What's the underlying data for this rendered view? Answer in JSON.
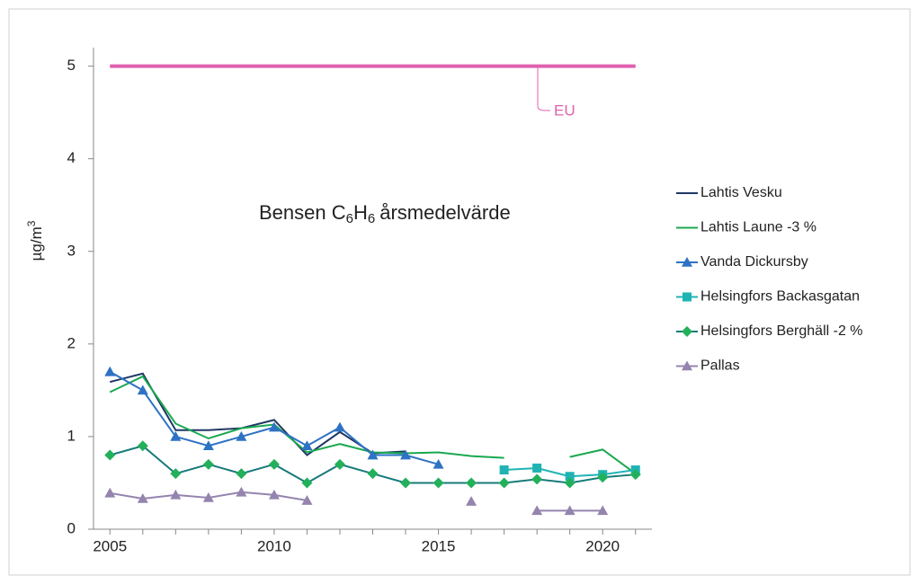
{
  "chart_data": {
    "type": "line",
    "title_parts": [
      "Bensen C",
      "6",
      "H",
      "6",
      "årsmedelvärde"
    ],
    "ylabel_parts": [
      "µg/m",
      "3"
    ],
    "x": [
      2005,
      2006,
      2007,
      2008,
      2009,
      2010,
      2011,
      2012,
      2013,
      2014,
      2015,
      2016,
      2017,
      2018,
      2019,
      2020,
      2021
    ],
    "xlim": [
      2004.5,
      2021.5
    ],
    "xticks": [
      2005,
      2010,
      2015,
      2020
    ],
    "ylim": [
      0,
      5.2
    ],
    "yticks": [
      0,
      1,
      2,
      3,
      4,
      5
    ],
    "grid": false,
    "legend": "right",
    "reference": {
      "label": "EU",
      "value": 5,
      "color": "#e060b0"
    },
    "series": [
      {
        "name": "Lahtis Vesku",
        "color": "#1f3864",
        "marker": null,
        "values": [
          1.59,
          1.68,
          1.07,
          1.07,
          1.09,
          1.18,
          0.8,
          1.05,
          0.82,
          0.84,
          null,
          null,
          null,
          null,
          null,
          null,
          null
        ]
      },
      {
        "name": "Lahtis Laune -3 %",
        "color": "#1aa84f",
        "marker": null,
        "values": [
          1.48,
          1.65,
          1.14,
          0.98,
          1.09,
          1.13,
          0.83,
          0.92,
          0.83,
          0.82,
          0.83,
          0.79,
          0.77,
          null,
          0.78,
          0.86,
          0.6
        ]
      },
      {
        "name": "Vanda Dickursby",
        "color": "#2e72c4",
        "marker": "triangle",
        "marker_color": "#2e72c4",
        "values": [
          1.7,
          1.5,
          1.0,
          0.9,
          1.0,
          1.1,
          0.9,
          1.1,
          0.8,
          0.8,
          0.7,
          null,
          null,
          null,
          null,
          null,
          null
        ]
      },
      {
        "name": "Helsingfors Backasgatan",
        "color": "#1fb3b3",
        "marker": "square",
        "marker_color": "#1fb3b3",
        "values": [
          null,
          null,
          null,
          null,
          null,
          null,
          null,
          null,
          null,
          null,
          null,
          null,
          0.64,
          0.66,
          0.57,
          0.59,
          0.64
        ]
      },
      {
        "name": "Helsingfors Berghäll -2 %",
        "color": "#187a7a",
        "marker": "diamond",
        "marker_color": "#22b05b",
        "values": [
          0.8,
          0.9,
          0.6,
          0.7,
          0.6,
          0.7,
          0.5,
          0.7,
          0.6,
          0.5,
          0.5,
          0.5,
          0.5,
          0.54,
          0.5,
          0.56,
          0.59
        ]
      },
      {
        "name": "Pallas",
        "color": "#9484ae",
        "marker": "triangle",
        "marker_color": "#9484ae",
        "values": [
          0.39,
          0.33,
          0.37,
          0.34,
          0.4,
          0.37,
          0.31,
          null,
          null,
          null,
          null,
          0.3,
          null,
          0.2,
          0.2,
          0.2,
          null
        ]
      }
    ]
  }
}
